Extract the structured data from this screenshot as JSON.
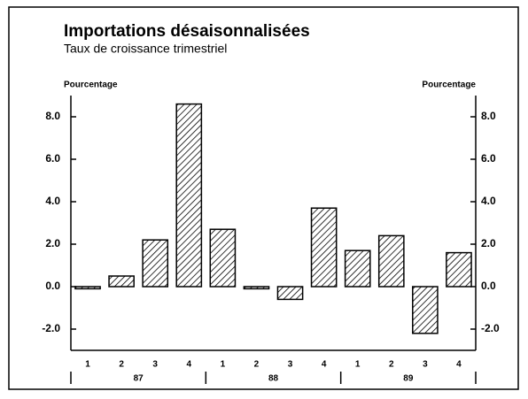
{
  "chart_data": {
    "type": "bar",
    "title": "Importations désaisonnalisées",
    "subtitle": "Taux de croissance trimestriel",
    "y_label": "Pourcentage",
    "y2_label": "Pourcentage",
    "categories": [
      "1",
      "2",
      "3",
      "4",
      "1",
      "2",
      "3",
      "4",
      "1",
      "2",
      "3",
      "4"
    ],
    "years": [
      "87",
      "88",
      "89"
    ],
    "values": [
      -0.1,
      0.5,
      2.2,
      8.6,
      2.7,
      -0.1,
      -0.6,
      3.7,
      1.7,
      2.4,
      -2.2,
      1.6
    ],
    "color": "#000000",
    "ylim": [
      -3,
      9
    ],
    "yticks": [
      {
        "value": 8,
        "label": "8.0"
      },
      {
        "value": 6,
        "label": "6.0"
      },
      {
        "value": 4,
        "label": "4.0"
      },
      {
        "value": 2,
        "label": "2.0"
      },
      {
        "value": 0,
        "label": "0.0"
      },
      {
        "value": -2,
        "label": "-2.0"
      }
    ],
    "y2lim": [
      -3,
      9
    ],
    "y2ticks": [
      {
        "value": 8,
        "label": "8.0"
      },
      {
        "value": 6,
        "label": "6.0"
      },
      {
        "value": 4,
        "label": "4.0"
      },
      {
        "value": 2,
        "label": "2.0"
      },
      {
        "value": 0,
        "label": "0.0"
      },
      {
        "value": -2,
        "label": "-2.0"
      }
    ]
  }
}
